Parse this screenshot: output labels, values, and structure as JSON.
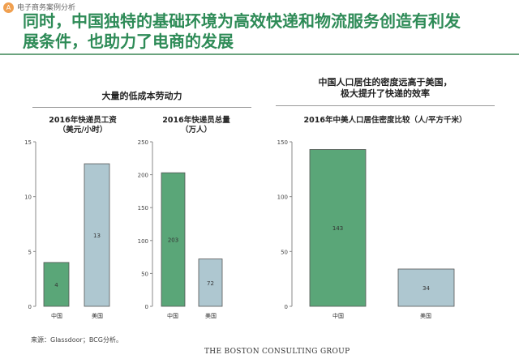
{
  "header": {
    "badge": "A",
    "breadcrumb": "电子商务案例分析",
    "title_line1": "同时，中国独特的基础环境为高效快递和物流服务创造有利发",
    "title_line2": "展条件，也助力了电商的发展"
  },
  "left_section": {
    "heading": "大量的低成本劳动力"
  },
  "right_section": {
    "heading_line1": "中国人口居住的密度远高于美国，",
    "heading_line2": "极大提升了快递的效率"
  },
  "chart_data": [
    {
      "type": "bar",
      "title_line1": "2016年快递员工资",
      "title_line2": "（美元/小时）",
      "categories": [
        "中国",
        "美国"
      ],
      "values": [
        4,
        13
      ],
      "ylim": [
        0,
        15
      ],
      "yticks": [
        0,
        5,
        10,
        15
      ],
      "colors": [
        "#5aa678",
        "#aec7d0"
      ],
      "grid": false
    },
    {
      "type": "bar",
      "title_line1": "2016年快递员总量",
      "title_line2": "（万人）",
      "categories": [
        "中国",
        "美国"
      ],
      "values": [
        203,
        72
      ],
      "ylim": [
        0,
        250
      ],
      "yticks": [
        0,
        50,
        100,
        150,
        200,
        250
      ],
      "colors": [
        "#5aa678",
        "#aec7d0"
      ],
      "grid": false
    },
    {
      "type": "bar",
      "title_line1": "2016年中美人口居住密度比较（人/平方千米）",
      "title_line2": "",
      "categories": [
        "中国",
        "美国"
      ],
      "values": [
        143,
        34
      ],
      "ylim": [
        0,
        150
      ],
      "yticks": [
        0,
        50,
        100,
        150
      ],
      "colors": [
        "#5aa678",
        "#aec7d0"
      ],
      "grid": false
    }
  ],
  "footer": {
    "source": "来源：Glassdoor；BCG分析。",
    "logo": "THE BOSTON CONSULTING GROUP"
  }
}
